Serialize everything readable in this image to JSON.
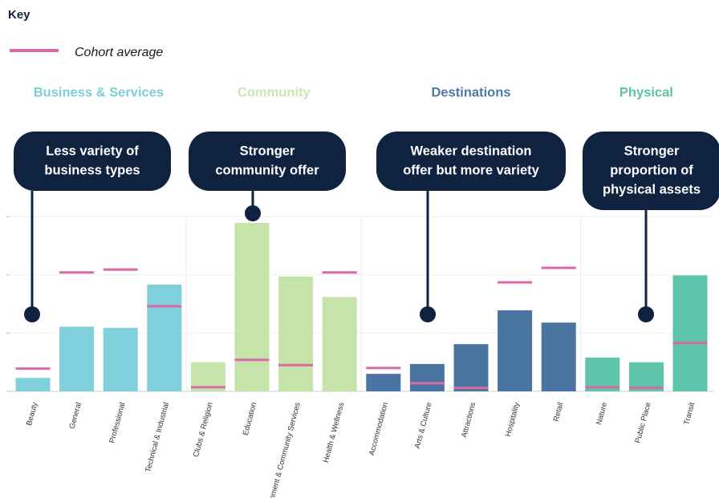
{
  "chart_data": {
    "type": "bar",
    "key_title": "Key",
    "ylim": [
      0,
      30
    ],
    "yticks": [
      0,
      10,
      20,
      30
    ],
    "grid": true,
    "average": {
      "name": "Cohort average",
      "color": "#d96aa7"
    },
    "groups": [
      {
        "name": "Business & Services",
        "color": "#7fd0dc",
        "title_color": "#7ccfd9",
        "categories": [
          "Beauty",
          "General",
          "Professional",
          "Technical & Industrial"
        ],
        "values": [
          2.3,
          11.1,
          10.9,
          18.3
        ],
        "averages": [
          3.9,
          20.4,
          20.9,
          14.6
        ]
      },
      {
        "name": "Community",
        "color": "#c6e3a9",
        "title_color": "#cde7b3",
        "categories": [
          "Clubs & Religion",
          "Education",
          "Government & Community Services",
          "Health & Wellness"
        ],
        "values": [
          5.0,
          28.9,
          19.7,
          16.2
        ],
        "averages": [
          0.7,
          5.4,
          4.5,
          20.4
        ]
      },
      {
        "name": "Destinations",
        "color": "#4b75a1",
        "title_color": "#4d7aa6",
        "categories": [
          "Accommodation",
          "Arts & Culture",
          "Attractions",
          "Hospitality",
          "Retail"
        ],
        "values": [
          3.0,
          4.7,
          8.1,
          13.9,
          11.8
        ],
        "averages": [
          4.0,
          1.4,
          0.6,
          18.7,
          21.2
        ]
      },
      {
        "name": "Physical",
        "color": "#5ec4aa",
        "title_color": "#5cc3a8",
        "categories": [
          "Nature",
          "Public Place",
          "Transit"
        ],
        "values": [
          5.8,
          5.0,
          19.9
        ],
        "averages": [
          0.7,
          0.6,
          8.3
        ]
      }
    ],
    "callouts": [
      {
        "lines": [
          "Less variety of",
          "business types"
        ]
      },
      {
        "lines": [
          "Stronger",
          "community offer"
        ]
      },
      {
        "lines": [
          "Weaker destination",
          "offer but more variety"
        ]
      },
      {
        "lines": [
          "Stronger",
          "proportion of",
          "physical assets"
        ]
      }
    ]
  }
}
